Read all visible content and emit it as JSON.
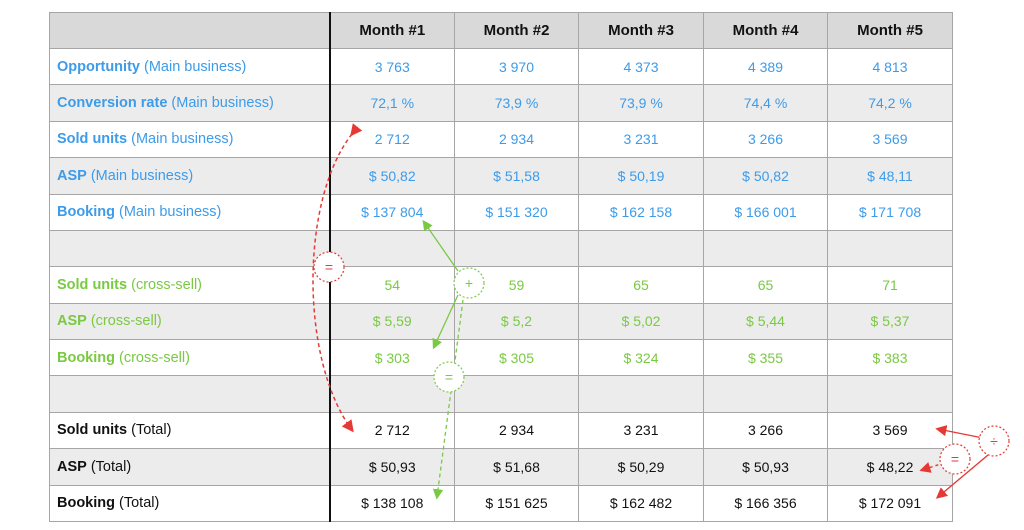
{
  "header": {
    "months": [
      "Month #1",
      "Month #2",
      "Month #3",
      "Month #4",
      "Month #5"
    ]
  },
  "rows": [
    {
      "bold": "Opportunity",
      "rest": " (Main business)",
      "values": [
        "3 763",
        "3 970",
        "4 373",
        "4 389",
        "4 813"
      ]
    },
    {
      "bold": "Conversion rate",
      "rest": " (Main business)",
      "values": [
        "72,1 %",
        "73,9 %",
        "73,9 %",
        "74,4 %",
        "74,2 %"
      ]
    },
    {
      "bold": "Sold units",
      "rest": " (Main business)",
      "values": [
        "2 712",
        "2 934",
        "3 231",
        "3 266",
        "3 569"
      ]
    },
    {
      "bold": "ASP",
      "rest": " (Main business)",
      "values": [
        "$ 50,82",
        "$ 51,58",
        "$ 50,19",
        "$ 50,82",
        "$ 48,11"
      ]
    },
    {
      "bold": "Booking",
      "rest": " (Main business)",
      "values": [
        "$ 137 804",
        "$ 151 320",
        "$ 162 158",
        "$ 166 001",
        "$ 171 708"
      ]
    },
    {
      "bold": "Sold units",
      "rest": " (cross-sell)",
      "values": [
        "54",
        "59",
        "65",
        "65",
        "71"
      ]
    },
    {
      "bold": "ASP",
      "rest": " (cross-sell)",
      "values": [
        "$ 5,59",
        "$ 5,2",
        "$ 5,02",
        "$ 5,44",
        "$ 5,37"
      ]
    },
    {
      "bold": "Booking",
      "rest": " (cross-sell)",
      "values": [
        "$ 303",
        "$ 305",
        "$ 324",
        "$ 355",
        "$ 383"
      ]
    },
    {
      "bold": "Sold units",
      "rest": " (Total)",
      "values": [
        "2 712",
        "2 934",
        "3 231",
        "3 266",
        "3 569"
      ]
    },
    {
      "bold": "ASP",
      "rest": " (Total)",
      "values": [
        "$ 50,93",
        "$ 51,68",
        "$ 50,29",
        "$ 50,93",
        "$ 48,22"
      ]
    },
    {
      "bold": "Booking",
      "rest": " (Total)",
      "values": [
        "$ 138 108",
        "$ 151 625",
        "$ 162 482",
        "$ 166 356",
        "$ 172 091"
      ]
    }
  ],
  "operators": {
    "equals": "=",
    "plus": "+",
    "divide": "÷"
  },
  "colors": {
    "blue": "#3d9be9",
    "green": "#7ac943",
    "red": "#e53935",
    "header_bg": "#d9d9d9",
    "shade_bg": "#ececec"
  }
}
